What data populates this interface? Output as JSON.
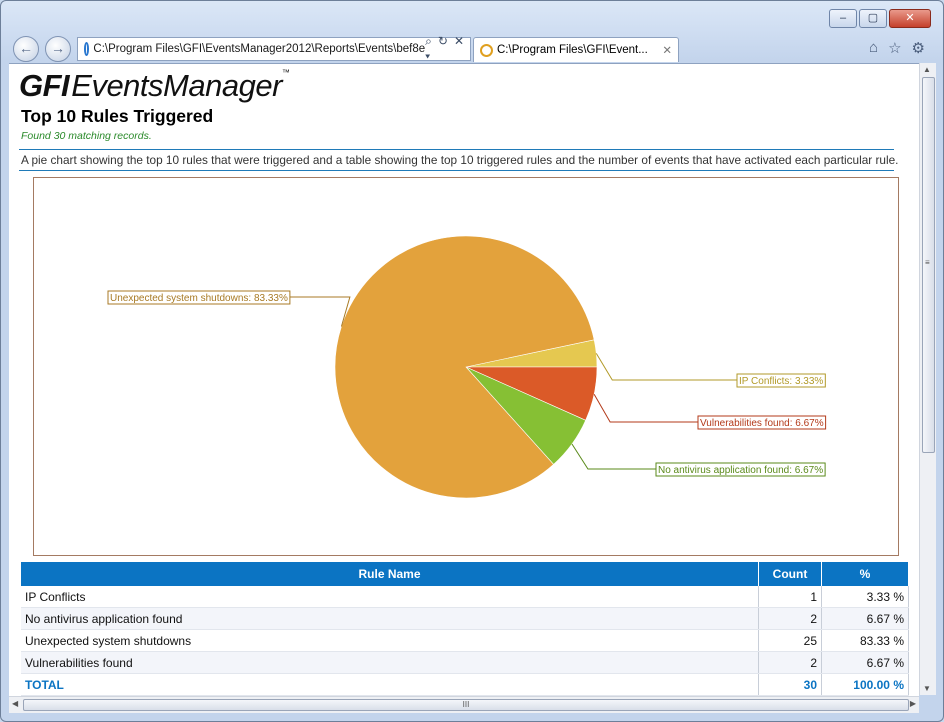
{
  "browser": {
    "address_url": "C:\\Program Files\\GFI\\EventsManager2012\\Reports\\Events\\bef8e",
    "tab_title": "C:\\Program Files\\GFI\\Event...",
    "back_icon": "back-arrow-icon",
    "forward_icon": "forward-arrow-icon",
    "search_glyph": "⌕ ▾",
    "refresh_glyph": "↻",
    "stop_glyph": "✕",
    "tab_close_glyph": "✕",
    "home_glyph": "⌂",
    "favorites_glyph": "☆",
    "settings_glyph": "⚙",
    "minimize_glyph": "–",
    "maximize_glyph": "▢",
    "close_glyph": "✕",
    "hscroll_grip": "III",
    "vscroll_grip": "≡"
  },
  "report": {
    "logo_bold": "GFI",
    "logo_italic": "EventsManager",
    "logo_tm": "™",
    "title": "Top 10 Rules Triggered",
    "found": "Found 30 matching records.",
    "description": "A pie chart showing the top 10 rules that were triggered and a table showing the top 10 triggered rules and the number of events that have activated each particular rule."
  },
  "chart_data": {
    "type": "pie",
    "slices": [
      {
        "label": "Unexpected system shutdowns: 83.33%",
        "value": 83.33,
        "color": "#e3a23c",
        "label_color": "#a87a24"
      },
      {
        "label": "IP Conflicts: 3.33%",
        "value": 3.33,
        "color": "#e5c850",
        "label_color": "#b29a28"
      },
      {
        "label": "Vulnerabilities found: 6.67%",
        "value": 6.67,
        "color": "#db5a28",
        "label_color": "#b33a1a"
      },
      {
        "label": "No antivirus application found: 6.67%",
        "value": 6.67,
        "color": "#86c034",
        "label_color": "#5a8a1a"
      }
    ]
  },
  "table": {
    "headers": {
      "rule": "Rule Name",
      "count": "Count",
      "pct": "%"
    },
    "rows": [
      {
        "rule": "IP Conflicts",
        "count": "1",
        "pct": "3.33 %"
      },
      {
        "rule": "No antivirus application found",
        "count": "2",
        "pct": "6.67 %"
      },
      {
        "rule": "Unexpected system shutdowns",
        "count": "25",
        "pct": "83.33 %"
      },
      {
        "rule": "Vulnerabilities found",
        "count": "2",
        "pct": "6.67 %"
      }
    ],
    "total": {
      "rule": "TOTAL",
      "count": "30",
      "pct": "100.00 %"
    }
  }
}
